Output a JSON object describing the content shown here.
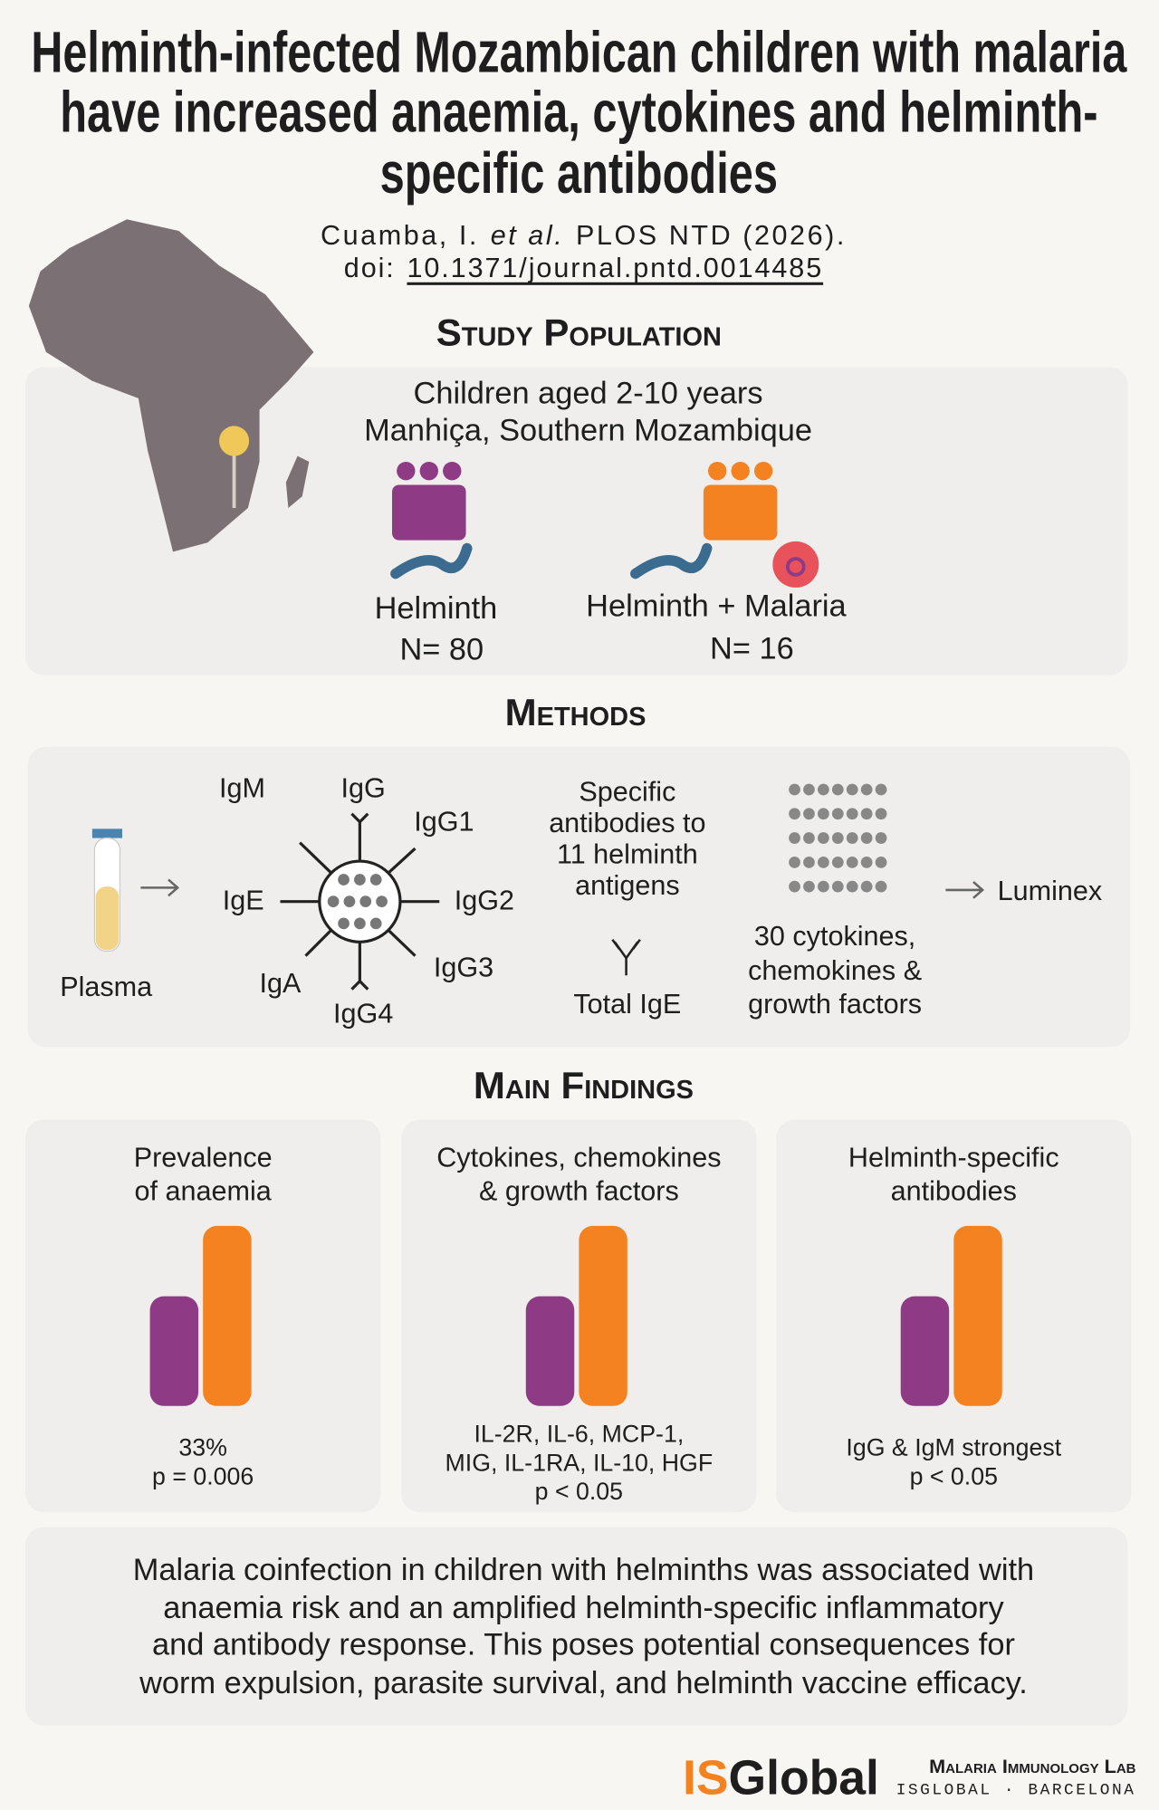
{
  "header": {
    "title_lines": [
      "Helminth-infected Mozambican children with malaria",
      "have increased anaemia, cytokines and helminth-",
      "specific antibodies"
    ],
    "citation": [
      "Cuamba, I.",
      "et al.",
      "PLOS NTD (2026)."
    ],
    "doi_label": "doi:",
    "doi": "10.1371/journal.pntd.0014485"
  },
  "study_population": {
    "heading": "Study Population",
    "lines": [
      "Children aged 2-10 years",
      "Manhiça, Southern Mozambique"
    ],
    "groups": [
      {
        "label": "Helminth",
        "n": "N= 80"
      },
      {
        "label": "Helminth + Malaria",
        "n": "N= 16"
      }
    ]
  },
  "methods": {
    "heading": "Methods",
    "sample": "Plasma",
    "antibodies": [
      "IgM",
      "IgG",
      "IgG1",
      "IgG2",
      "IgG3",
      "IgG4",
      "IgA",
      "IgE"
    ],
    "specific_lines": [
      "Specific",
      "antibodies to",
      "11 helminth",
      "antigens"
    ],
    "total": "Total IgE",
    "cytokine_lines": [
      "30 cytokines,",
      "chemokines &",
      "growth factors"
    ],
    "platform": "Luminex"
  },
  "findings": {
    "heading": "Main Findings",
    "cards": [
      {
        "title_lines": [
          "Prevalence",
          "of anaemia"
        ],
        "note_lines": [
          "33%",
          "p = 0.006"
        ]
      },
      {
        "title_lines": [
          "Cytokines, chemokines",
          "& growth factors"
        ],
        "note_lines": [
          "IL-2R, IL-6, MCP-1,",
          "MIG, IL-1RA, IL-10, HGF",
          "p < 0.05"
        ]
      },
      {
        "title_lines": [
          "Helminth-specific",
          "antibodies"
        ],
        "note_lines": [
          "IgG & IgM strongest",
          "p < 0.05"
        ]
      }
    ]
  },
  "conclusion_lines": [
    "Malaria coinfection in children with helminths was associated with",
    "anaemia risk and an amplified helminth-specific inflammatory",
    "and antibody response. This poses potential consequences for",
    "worm expulsion, parasite survival, and helminth vaccine efficacy."
  ],
  "footer": {
    "logo_is": "IS",
    "logo_global": "Global",
    "lab": "Malaria Immunology Lab",
    "place": "ISGLOBAL · BARCELONA"
  }
}
